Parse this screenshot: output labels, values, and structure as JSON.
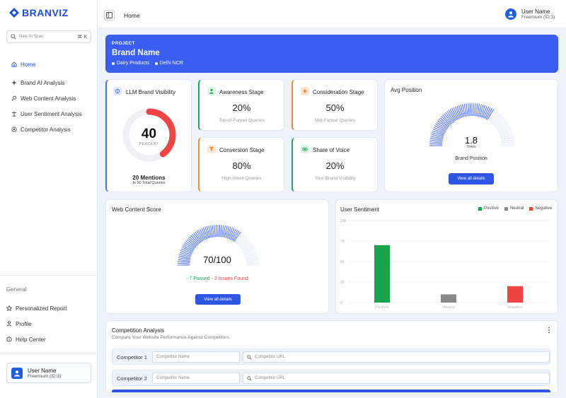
{
  "brand": {
    "logo_text": "BRANVIZ"
  },
  "search": {
    "placeholder": "New AI Scan",
    "shortcut": "⌘ K"
  },
  "nav": [
    {
      "label": "Home",
      "icon": "home-icon",
      "active": true
    },
    {
      "label": "Brand AI Analysis",
      "icon": "sparkle-icon"
    },
    {
      "label": "Web Content Analysis",
      "icon": "pin-icon"
    },
    {
      "label": "User Sentiment Analysis",
      "icon": "sentiment-icon"
    },
    {
      "label": "Competitor Analysis",
      "icon": "target-icon"
    }
  ],
  "general": {
    "label": "General",
    "items": [
      {
        "label": "Personalized Report",
        "icon": "star-icon"
      },
      {
        "label": "Profile",
        "icon": "user-icon"
      },
      {
        "label": "Help Center",
        "icon": "info-icon"
      }
    ]
  },
  "user": {
    "name": "User Name",
    "plan": "Freemium (ID:3)"
  },
  "topbar": {
    "title": "Home"
  },
  "project": {
    "label": "PROJECT",
    "name": "Brand Name",
    "tags": [
      "Dairy Products",
      "Delhi NCR"
    ]
  },
  "visibility": {
    "title": "LLM Brand Visibility",
    "value": "40",
    "unit": "PERCENT",
    "percent": 40,
    "mentions": "20 Mentions",
    "mentions_sub": "In 50 Total Queries"
  },
  "stages": {
    "awareness": {
      "title": "Awareness Stage",
      "value": "20%",
      "sub": "Top-of-Funnel Queries"
    },
    "consideration": {
      "title": "Consideration Stage",
      "value": "50%",
      "sub": "Mid-Funnel Queries"
    },
    "conversion": {
      "title": "Conversion Stage",
      "value": "80%",
      "sub": "High-Intent Queries"
    },
    "share": {
      "title": "Share of Voice",
      "value": "20%",
      "sub": "Your Brand Visibility"
    }
  },
  "avg_position": {
    "title": "Avg Position",
    "value": "1.8",
    "unit": "Times",
    "label": "Brand Position",
    "button": "View all details"
  },
  "web_content": {
    "title": "Web Content Score",
    "value": "70/100",
    "score": 70,
    "passed": "- 7 Passed",
    "issues": "- 3 Issues Found",
    "button": "View all details"
  },
  "sentiment": {
    "title": "User Sentiment",
    "legend": [
      {
        "label": "Positive",
        "color": "#16a34a"
      },
      {
        "label": "Neutral",
        "color": "#888888"
      },
      {
        "label": "Negative",
        "color": "#ef4444"
      }
    ]
  },
  "chart_data": {
    "type": "bar",
    "title": "User Sentiment",
    "categories": [
      "Positive",
      "Neutral",
      "Negative"
    ],
    "values": [
      70,
      10,
      20
    ],
    "colors": [
      "#16a34a",
      "#888888",
      "#ef4444"
    ],
    "yticks": [
      "100",
      "75",
      "50",
      "25",
      "0"
    ],
    "ylim": [
      0,
      100
    ],
    "grid": true,
    "legend": "top-right"
  },
  "competition": {
    "title": "Competition Analysis",
    "subtitle": "Compare Your Website Performance Against Competitors",
    "rows": [
      {
        "label": "Competitor 1",
        "name_placeholder": "Competitor Name",
        "url_placeholder": "Competitor URL"
      },
      {
        "label": "Competitor 2",
        "name_placeholder": "Competitor Name",
        "url_placeholder": "Competitor URL"
      }
    ]
  }
}
